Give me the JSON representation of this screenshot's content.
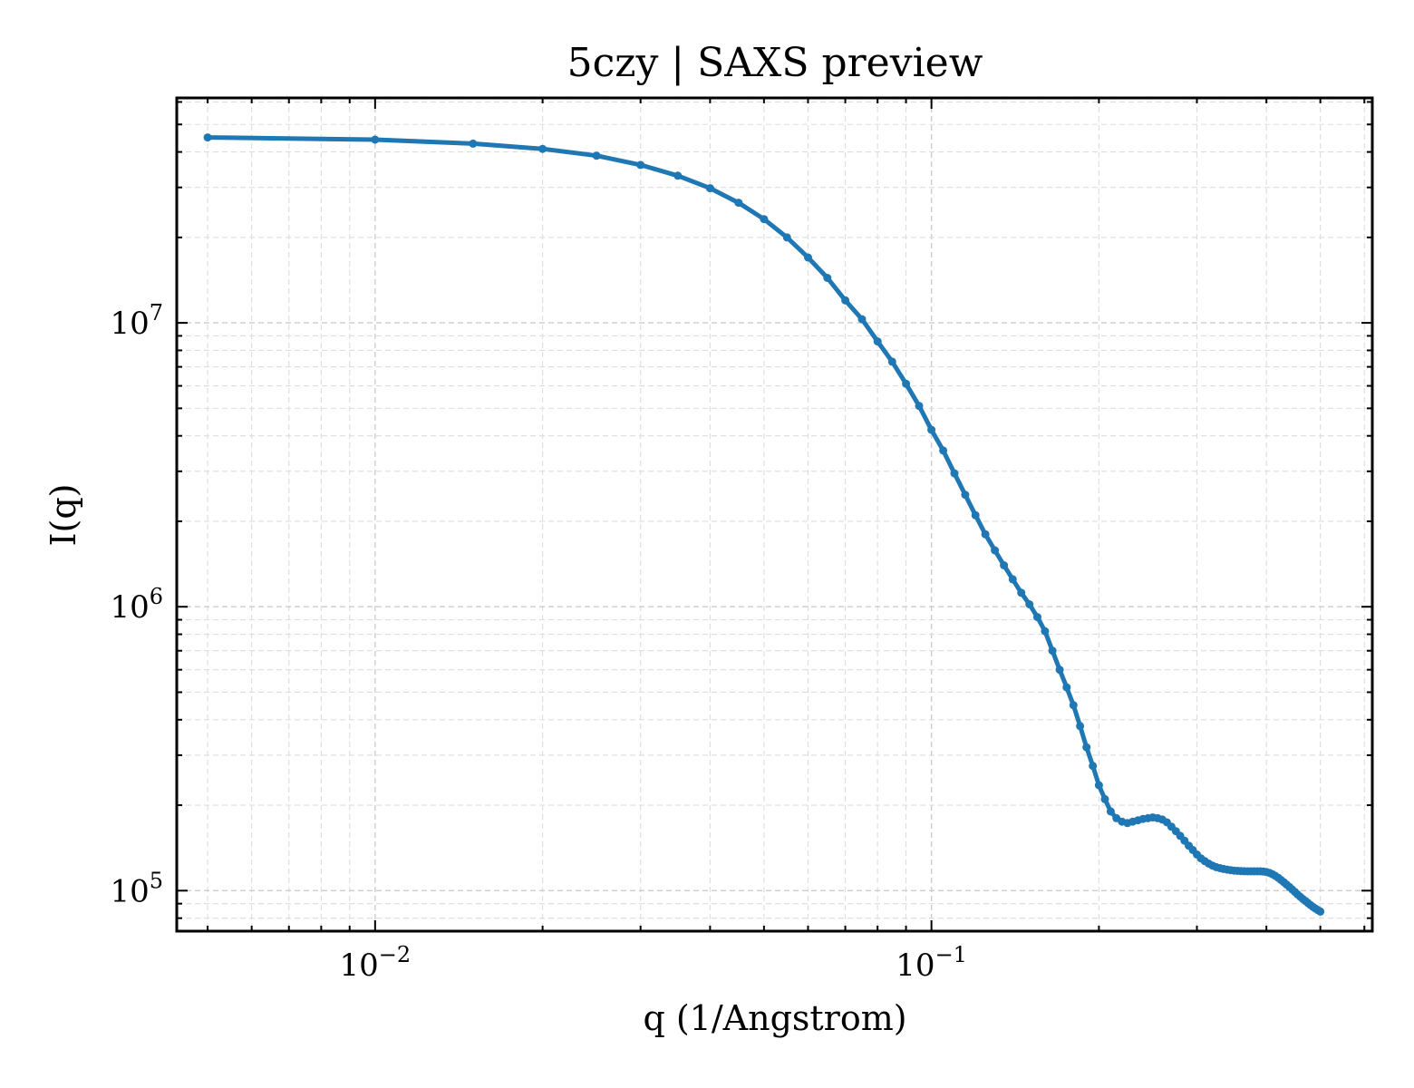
{
  "chart_data": {
    "type": "line",
    "title": "5czy | SAXS preview",
    "xlabel": "q (1/Angstrom)",
    "ylabel": "I(q)",
    "xscale": "log",
    "yscale": "log",
    "xlim": [
      0.0044,
      0.62
    ],
    "ylim": [
      72000,
      62000000
    ],
    "grid": true,
    "legend": "none",
    "color": "#1f77b4",
    "x_ticks": [
      {
        "value": 0.01,
        "mantissa": "10",
        "exponent": "−2"
      },
      {
        "value": 0.1,
        "mantissa": "10",
        "exponent": "−1"
      }
    ],
    "y_ticks": [
      {
        "value": 100000,
        "mantissa": "10",
        "exponent": "5"
      },
      {
        "value": 1000000,
        "mantissa": "10",
        "exponent": "6"
      },
      {
        "value": 10000000,
        "mantissa": "10",
        "exponent": "7"
      }
    ],
    "series": [
      {
        "x": [
          0.005,
          0.01,
          0.015,
          0.02,
          0.025,
          0.03,
          0.035,
          0.04,
          0.045,
          0.05,
          0.055,
          0.06,
          0.065,
          0.07,
          0.075,
          0.08,
          0.085,
          0.09,
          0.095,
          0.1,
          0.105,
          0.11,
          0.115,
          0.12,
          0.125,
          0.13,
          0.135,
          0.14,
          0.145,
          0.15,
          0.155,
          0.16,
          0.165,
          0.17,
          0.175,
          0.18,
          0.185,
          0.19,
          0.195,
          0.2,
          0.205,
          0.21,
          0.215,
          0.22,
          0.225,
          0.23,
          0.235,
          0.24,
          0.245,
          0.25,
          0.255,
          0.26,
          0.265,
          0.27,
          0.275,
          0.28,
          0.285,
          0.29,
          0.295,
          0.3,
          0.305,
          0.31,
          0.315,
          0.32,
          0.325,
          0.33,
          0.335,
          0.34,
          0.345,
          0.35,
          0.355,
          0.36,
          0.365,
          0.37,
          0.375,
          0.38,
          0.385,
          0.39,
          0.395,
          0.4,
          0.405,
          0.41,
          0.415,
          0.42,
          0.425,
          0.43,
          0.435,
          0.44,
          0.445,
          0.45,
          0.455,
          0.46,
          0.465,
          0.47,
          0.475,
          0.48,
          0.485,
          0.49,
          0.495,
          0.5
        ],
        "y": [
          45000000,
          44200000,
          42800000,
          41000000,
          38800000,
          36000000,
          33000000,
          29800000,
          26500000,
          23200000,
          20000000,
          17000000,
          14400000,
          12000000,
          10300000,
          8600000,
          7300000,
          6100000,
          5100000,
          4200000,
          3550000,
          2950000,
          2480000,
          2100000,
          1800000,
          1580000,
          1400000,
          1250000,
          1120000,
          1020000,
          920000,
          820000,
          700000,
          600000,
          520000,
          450000,
          380000,
          320000,
          275000,
          235000,
          210000,
          190000,
          180000,
          175000,
          173000,
          175000,
          177000,
          179000,
          180000,
          181000,
          180000,
          178000,
          174000,
          168000,
          162000,
          156000,
          150000,
          144000,
          139000,
          134000,
          130000,
          127000,
          124500,
          122500,
          121000,
          120000,
          119200,
          118600,
          118100,
          117700,
          117400,
          117200,
          117100,
          117000,
          117000,
          117000,
          117000,
          117000,
          116800,
          116300,
          115500,
          114300,
          112800,
          111000,
          109000,
          107000,
          105000,
          103000,
          101000,
          99000,
          97000,
          95200,
          93500,
          92000,
          90500,
          89000,
          87700,
          86500,
          85400,
          84400
        ]
      }
    ]
  }
}
